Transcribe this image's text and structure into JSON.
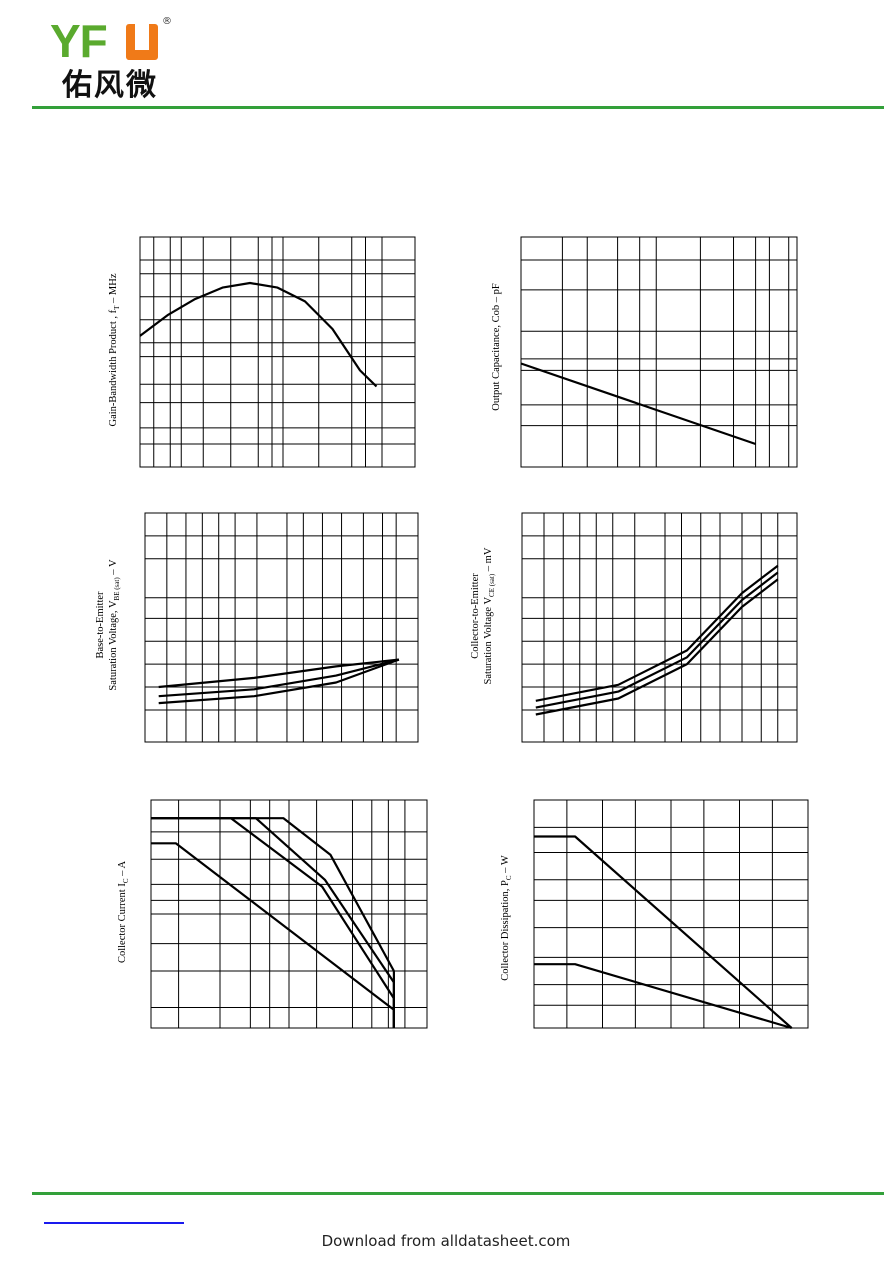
{
  "brand": {
    "latin_y_f": "YF",
    "latin_u": "U",
    "registered": "®",
    "chinese": "佑风微"
  },
  "footer": {
    "text": "Download from alldatasheet.com"
  },
  "colors": {
    "brand_green": "#5aaa2e",
    "brand_orange": "#f07a18",
    "rule_green": "#33a03a",
    "link_blue": "#1a1aee"
  },
  "charts": {
    "ft": {
      "label_main": "Gain-Bandwidth Product , f",
      "label_sub": "T",
      "label_unit": "  –  MHz"
    },
    "cob": {
      "label": "Output Capacitance,  Cob  –  pF"
    },
    "vbe": {
      "line1": "Base-to-Emitter",
      "line2_main": "Saturation Voltage, V",
      "line2_sub": "BE (sat)",
      "line2_unit": "  –  V"
    },
    "vce": {
      "line1": "Collector-to-Emitter",
      "line2_main": "Saturation Voltage V",
      "line2_sub": "CE (sat)",
      "line2_unit": "  –  mV"
    },
    "ic": {
      "label_main": "Collector Current I",
      "label_sub": "C",
      "label_unit": "  –  A"
    },
    "pc": {
      "label_main": "Collector Dissipation, P",
      "label_sub": "C",
      "label_unit": "  –  W"
    }
  },
  "chart_data": [
    {
      "type": "line",
      "id": "ft",
      "series": [
        {
          "values": [
            [
              0.0,
              0.57
            ],
            [
              0.1,
              0.66
            ],
            [
              0.2,
              0.73
            ],
            [
              0.3,
              0.78
            ],
            [
              0.4,
              0.8
            ],
            [
              0.5,
              0.78
            ],
            [
              0.6,
              0.72
            ],
            [
              0.7,
              0.6
            ],
            [
              0.8,
              0.42
            ],
            [
              0.86,
              0.35
            ]
          ]
        }
      ]
    },
    {
      "type": "line",
      "id": "cob",
      "series": [
        {
          "values": [
            [
              0.0,
              0.45
            ],
            [
              0.85,
              0.1
            ]
          ]
        }
      ]
    },
    {
      "type": "line",
      "id": "vbe",
      "series": [
        {
          "values": [
            [
              0.05,
              0.24
            ],
            [
              0.4,
              0.28
            ],
            [
              0.7,
              0.33
            ],
            [
              0.93,
              0.36
            ]
          ]
        },
        {
          "values": [
            [
              0.05,
              0.2
            ],
            [
              0.4,
              0.23
            ],
            [
              0.7,
              0.29
            ],
            [
              0.93,
              0.36
            ]
          ]
        },
        {
          "values": [
            [
              0.05,
              0.17
            ],
            [
              0.4,
              0.2
            ],
            [
              0.7,
              0.26
            ],
            [
              0.93,
              0.36
            ]
          ]
        }
      ]
    },
    {
      "type": "line",
      "id": "vce",
      "series": [
        {
          "values": [
            [
              0.05,
              0.18
            ],
            [
              0.35,
              0.25
            ],
            [
              0.6,
              0.4
            ],
            [
              0.8,
              0.65
            ],
            [
              0.93,
              0.77
            ]
          ]
        },
        {
          "values": [
            [
              0.05,
              0.15
            ],
            [
              0.35,
              0.22
            ],
            [
              0.6,
              0.37
            ],
            [
              0.8,
              0.62
            ],
            [
              0.93,
              0.74
            ]
          ]
        },
        {
          "values": [
            [
              0.05,
              0.12
            ],
            [
              0.35,
              0.19
            ],
            [
              0.6,
              0.34
            ],
            [
              0.8,
              0.59
            ],
            [
              0.93,
              0.71
            ]
          ]
        }
      ]
    },
    {
      "type": "line",
      "id": "ic",
      "series": [
        {
          "values": [
            [
              0.0,
              0.92
            ],
            [
              0.48,
              0.92
            ],
            [
              0.65,
              0.76
            ],
            [
              0.88,
              0.25
            ],
            [
              0.88,
              0.0
            ]
          ]
        },
        {
          "values": [
            [
              0.0,
              0.92
            ],
            [
              0.38,
              0.92
            ],
            [
              0.63,
              0.65
            ],
            [
              0.88,
              0.2
            ],
            [
              0.88,
              0.0
            ]
          ]
        },
        {
          "values": [
            [
              0.0,
              0.92
            ],
            [
              0.29,
              0.92
            ],
            [
              0.62,
              0.62
            ],
            [
              0.88,
              0.13
            ],
            [
              0.88,
              0.0
            ]
          ]
        },
        {
          "values": [
            [
              0.0,
              0.81
            ],
            [
              0.09,
              0.81
            ],
            [
              0.88,
              0.08
            ],
            [
              0.88,
              0.0
            ]
          ]
        }
      ]
    },
    {
      "type": "line",
      "id": "pc",
      "series": [
        {
          "values": [
            [
              0.0,
              0.84
            ],
            [
              0.15,
              0.84
            ],
            [
              0.94,
              0.0
            ]
          ]
        },
        {
          "values": [
            [
              0.0,
              0.28
            ],
            [
              0.15,
              0.28
            ],
            [
              0.94,
              0.0
            ]
          ]
        }
      ]
    }
  ]
}
